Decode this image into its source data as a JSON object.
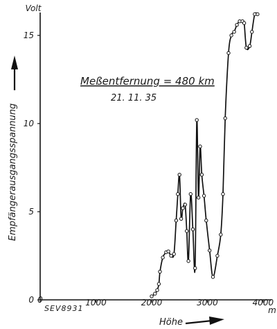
{
  "chart_data": {
    "type": "line",
    "title": "",
    "xlabel": "Höhe",
    "ylabel": "Empfängerausgangsspannung",
    "y_unit": "Volt",
    "x_unit": "m",
    "xlim": [
      0,
      4150
    ],
    "ylim": [
      0,
      16.3
    ],
    "x_ticks": [
      {
        "value": 0,
        "label": "0"
      },
      {
        "value": 1000,
        "label": "1000"
      },
      {
        "value": 2000,
        "label": "2000"
      },
      {
        "value": 3000,
        "label": "3000"
      },
      {
        "value": 4000,
        "label": "4000"
      }
    ],
    "y_ticks": [
      {
        "value": 0,
        "label": "0"
      },
      {
        "value": 5,
        "label": "5"
      },
      {
        "value": 10,
        "label": "10"
      },
      {
        "value": 15,
        "label": "15"
      }
    ],
    "annotation": "Meßentfernung = 480 km",
    "date": "21. 11. 35",
    "figure_code": "SEV8931",
    "grid": false,
    "legend": "none",
    "series": [
      {
        "x": [
          2000,
          2060,
          2100,
          2130,
          2150,
          2200,
          2260,
          2300,
          2350,
          2400,
          2440,
          2470,
          2500,
          2530,
          2560,
          2600,
          2630,
          2660,
          2700,
          2740,
          2780,
          2810,
          2840,
          2870,
          2900,
          2940,
          2980,
          3040,
          3100,
          3180,
          3240,
          3280,
          3320,
          3380,
          3430,
          3480,
          3530,
          3580,
          3630,
          3660,
          3700,
          3760,
          3800,
          3850,
          3900
        ],
        "y": [
          0.2,
          0.35,
          0.55,
          0.9,
          1.6,
          2.4,
          2.7,
          2.75,
          2.5,
          2.6,
          4.5,
          6.0,
          7.1,
          4.6,
          5.2,
          5.4,
          3.9,
          2.2,
          6.0,
          4.0,
          1.8,
          10.2,
          5.8,
          8.7,
          7.1,
          5.9,
          4.5,
          2.8,
          1.3,
          2.5,
          3.7,
          6.0,
          10.3,
          14.0,
          15.0,
          15.2,
          15.6,
          15.8,
          15.8,
          15.7,
          14.3,
          14.4,
          15.2,
          16.2,
          16.2
        ]
      }
    ]
  }
}
